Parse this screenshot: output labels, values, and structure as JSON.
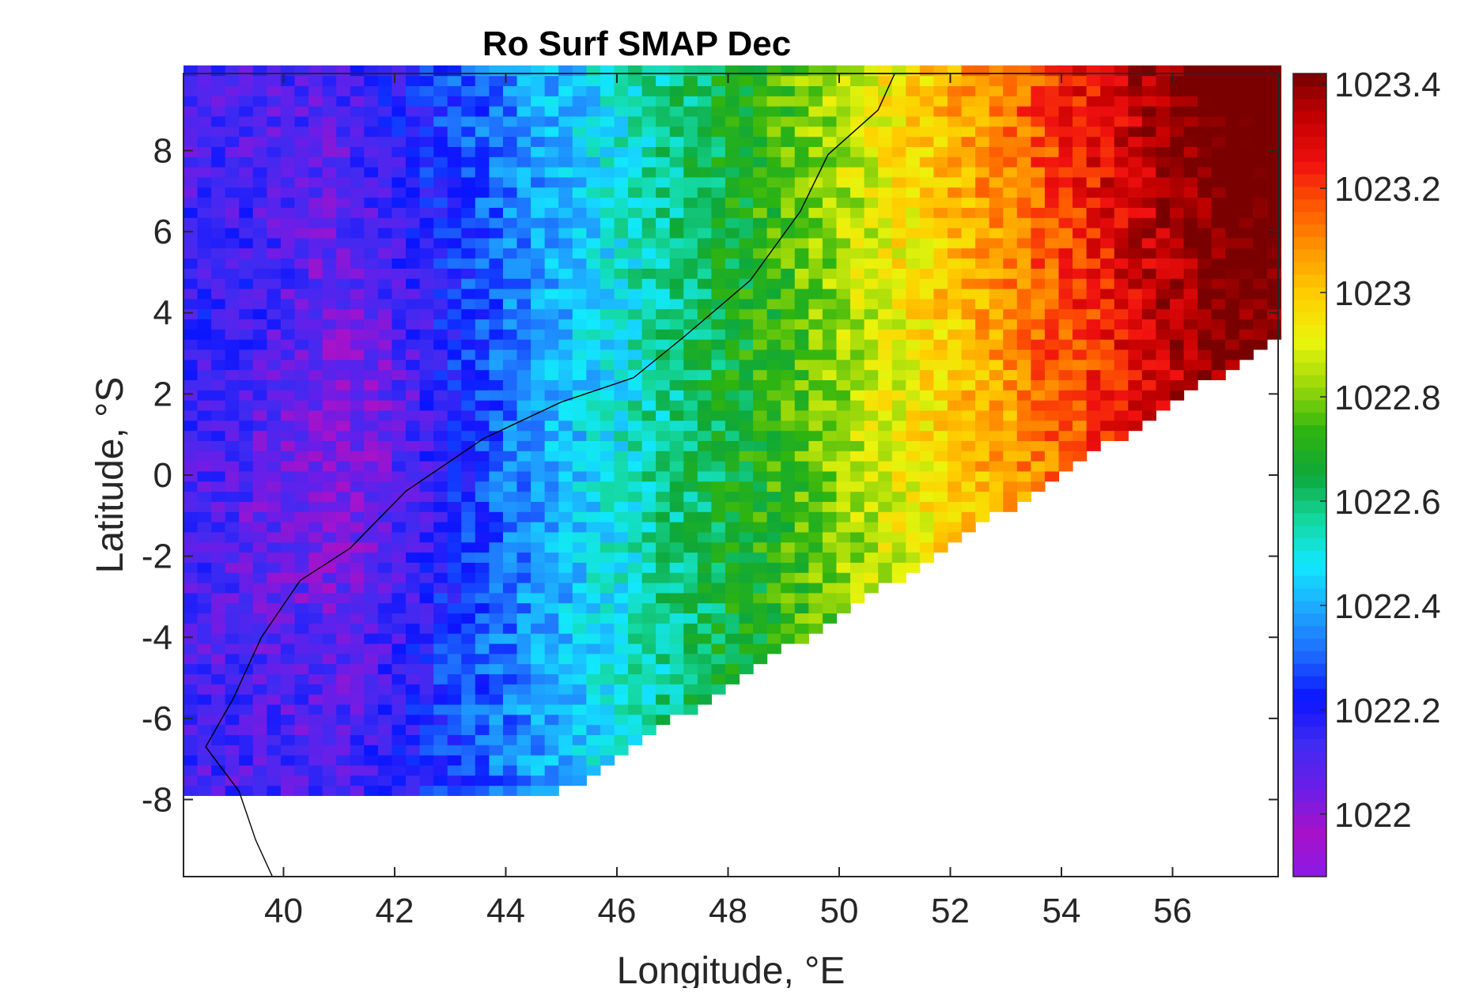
{
  "chart_data": {
    "type": "heatmap",
    "title": "Ro Surf SMAP Dec",
    "xlabel": "Longitude, °E",
    "ylabel": "Latitude, °S",
    "xlim": [
      38.2,
      57.9
    ],
    "ylim": [
      -9.9,
      9.9
    ],
    "x_ticks": [
      40,
      42,
      44,
      46,
      48,
      50,
      52,
      54,
      56
    ],
    "y_ticks": [
      8,
      6,
      4,
      2,
      0,
      -2,
      -4,
      -6,
      -8
    ],
    "grid": "off",
    "colorbar": {
      "clim": [
        1021.88,
        1023.42
      ],
      "ticks": [
        1022,
        1022.2,
        1022.4,
        1022.6,
        1022.8,
        1023,
        1023.2,
        1023.4
      ],
      "tick_labels": [
        "1022",
        "1022.2",
        "1022.4",
        "1022.6",
        "1022.8",
        "1023",
        "1023.2",
        "1023.4"
      ],
      "colormap": [
        "#8a1ae6",
        "#a712c8",
        "#6a1ee8",
        "#3f2bf2",
        "#0a14ff",
        "#1e6cff",
        "#1ea8ff",
        "#12e8ff",
        "#14d8a0",
        "#0ea83a",
        "#2fb410",
        "#9ad80a",
        "#eaf40c",
        "#ffd000",
        "#ff9a00",
        "#ff5a00",
        "#f01010",
        "#c40000",
        "#7a0000"
      ]
    },
    "field_model": {
      "grid_step_deg": 0.25,
      "valid_region": "north of the line from (44.9, -7.9) to (57.9, 3.4); south limit -7.9",
      "field": "values rise eastward from about 1022.1 near 41°E to about 1023.4 near 57°E, with a cool anomaly of about 1022.15 centred near (41.5, 1.0)",
      "speckle_amplitude": 0.09
    },
    "coastline": {
      "color": "#000000",
      "points": [
        [
          51.0,
          9.9
        ],
        [
          50.7,
          9.0
        ],
        [
          49.8,
          7.9
        ],
        [
          49.3,
          6.5
        ],
        [
          48.4,
          4.8
        ],
        [
          47.2,
          3.4
        ],
        [
          46.3,
          2.4
        ],
        [
          45.0,
          1.8
        ],
        [
          43.6,
          0.9
        ],
        [
          42.2,
          -0.4
        ],
        [
          41.2,
          -1.8
        ],
        [
          40.3,
          -2.6
        ],
        [
          39.6,
          -4.0
        ],
        [
          39.1,
          -5.5
        ],
        [
          38.6,
          -6.7
        ],
        [
          39.2,
          -7.8
        ],
        [
          39.5,
          -9.0
        ],
        [
          39.8,
          -9.9
        ]
      ]
    }
  }
}
